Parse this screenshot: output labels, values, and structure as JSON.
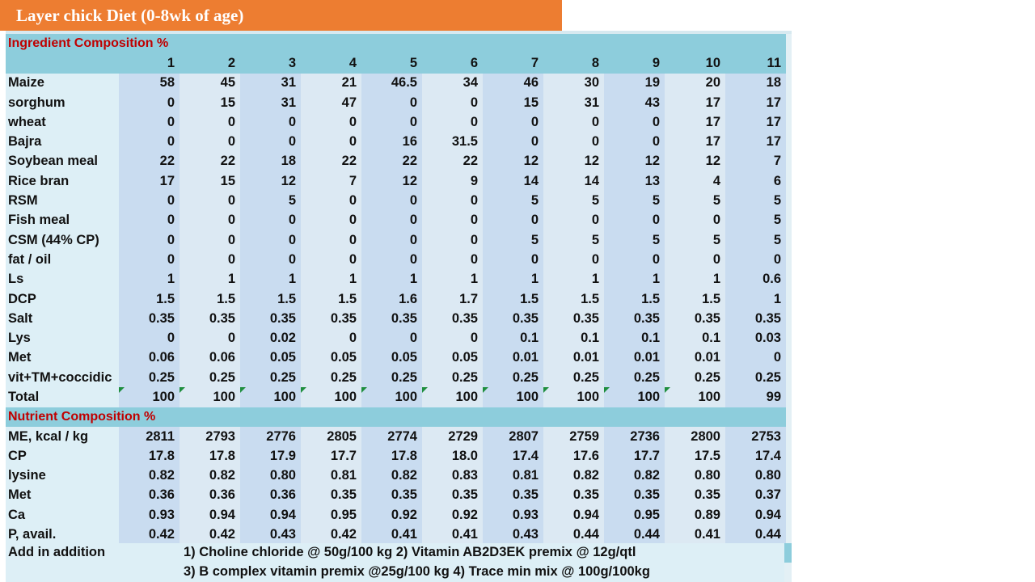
{
  "title": "Layer chick Diet (0-8wk of age)",
  "ingredient_section": "Ingredient Composition %",
  "nutrient_section": "Nutrient Composition %",
  "columns": [
    "1",
    "2",
    "3",
    "4",
    "5",
    "6",
    "7",
    "8",
    "9",
    "10",
    "11"
  ],
  "ingredients": [
    {
      "label": "Maize",
      "values": [
        "58",
        "45",
        "31",
        "21",
        "46.5",
        "34",
        "46",
        "30",
        "19",
        "20",
        "18"
      ]
    },
    {
      "label": "sorghum",
      "values": [
        "0",
        "15",
        "31",
        "47",
        "0",
        "0",
        "15",
        "31",
        "43",
        "17",
        "17"
      ]
    },
    {
      "label": "wheat",
      "values": [
        "0",
        "0",
        "0",
        "0",
        "0",
        "0",
        "0",
        "0",
        "0",
        "17",
        "17"
      ]
    },
    {
      "label": "Bajra",
      "values": [
        "0",
        "0",
        "0",
        "0",
        "16",
        "31.5",
        "0",
        "0",
        "0",
        "17",
        "17"
      ]
    },
    {
      "label": "Soybean meal",
      "values": [
        "22",
        "22",
        "18",
        "22",
        "22",
        "22",
        "12",
        "12",
        "12",
        "12",
        "7"
      ]
    },
    {
      "label": "Rice bran",
      "values": [
        "17",
        "15",
        "12",
        "7",
        "12",
        "9",
        "14",
        "14",
        "13",
        "4",
        "6"
      ]
    },
    {
      "label": "RSM",
      "values": [
        "0",
        "0",
        "5",
        "0",
        "0",
        "0",
        "5",
        "5",
        "5",
        "5",
        "5"
      ]
    },
    {
      "label": "Fish meal",
      "values": [
        "0",
        "0",
        "0",
        "0",
        "0",
        "0",
        "0",
        "0",
        "0",
        "0",
        "5"
      ]
    },
    {
      "label": "CSM (44% CP)",
      "values": [
        "0",
        "0",
        "0",
        "0",
        "0",
        "0",
        "5",
        "5",
        "5",
        "5",
        "5"
      ]
    },
    {
      "label": "fat / oil",
      "values": [
        "0",
        "0",
        "0",
        "0",
        "0",
        "0",
        "0",
        "0",
        "0",
        "0",
        "0"
      ]
    },
    {
      "label": "Ls",
      "values": [
        "1",
        "1",
        "1",
        "1",
        "1",
        "1",
        "1",
        "1",
        "1",
        "1",
        "0.6"
      ]
    },
    {
      "label": "DCP",
      "values": [
        "1.5",
        "1.5",
        "1.5",
        "1.5",
        "1.6",
        "1.7",
        "1.5",
        "1.5",
        "1.5",
        "1.5",
        "1"
      ]
    },
    {
      "label": "Salt",
      "values": [
        "0.35",
        "0.35",
        "0.35",
        "0.35",
        "0.35",
        "0.35",
        "0.35",
        "0.35",
        "0.35",
        "0.35",
        "0.35"
      ]
    },
    {
      "label": "Lys",
      "values": [
        "0",
        "0",
        "0.02",
        "0",
        "0",
        "0",
        "0.1",
        "0.1",
        "0.1",
        "0.1",
        "0.03"
      ]
    },
    {
      "label": "Met",
      "values": [
        "0.06",
        "0.06",
        "0.05",
        "0.05",
        "0.05",
        "0.05",
        "0.01",
        "0.01",
        "0.01",
        "0.01",
        "0"
      ]
    },
    {
      "label": "vit+TM+coccidic",
      "values": [
        "0.25",
        "0.25",
        "0.25",
        "0.25",
        "0.25",
        "0.25",
        "0.25",
        "0.25",
        "0.25",
        "0.25",
        "0.25"
      ]
    }
  ],
  "total": {
    "label": "Total",
    "values": [
      "100",
      "100",
      "100",
      "100",
      "100",
      "100",
      "100",
      "100",
      "100",
      "100",
      "99"
    ]
  },
  "nutrients": [
    {
      "label": "ME, kcal / kg",
      "values": [
        "2811",
        "2793",
        "2776",
        "2805",
        "2774",
        "2729",
        "2807",
        "2759",
        "2736",
        "2800",
        "2753"
      ]
    },
    {
      "label": "CP",
      "values": [
        "17.8",
        "17.8",
        "17.9",
        "17.7",
        "17.8",
        "18.0",
        "17.4",
        "17.6",
        "17.7",
        "17.5",
        "17.4"
      ]
    },
    {
      "label": "lysine",
      "values": [
        "0.82",
        "0.82",
        "0.80",
        "0.81",
        "0.82",
        "0.83",
        "0.81",
        "0.82",
        "0.82",
        "0.80",
        "0.80"
      ]
    },
    {
      "label": "Met",
      "values": [
        "0.36",
        "0.36",
        "0.36",
        "0.35",
        "0.35",
        "0.35",
        "0.35",
        "0.35",
        "0.35",
        "0.35",
        "0.37"
      ]
    },
    {
      "label": "Ca",
      "values": [
        "0.93",
        "0.94",
        "0.94",
        "0.95",
        "0.92",
        "0.92",
        "0.93",
        "0.94",
        "0.95",
        "0.89",
        "0.94"
      ]
    },
    {
      "label": "P, avail.",
      "values": [
        "0.42",
        "0.42",
        "0.43",
        "0.42",
        "0.41",
        "0.41",
        "0.43",
        "0.44",
        "0.44",
        "0.41",
        "0.44"
      ]
    }
  ],
  "addition": {
    "label": "Add in addition",
    "line1": "1) Choline chloride @ 50g/100 kg  2) Vitamin AB2D3EK premix @ 12g/qtl",
    "line2": "3) B complex vitamin premix @25g/100 kg  4) Trace min mix @ 100g/100kg"
  }
}
